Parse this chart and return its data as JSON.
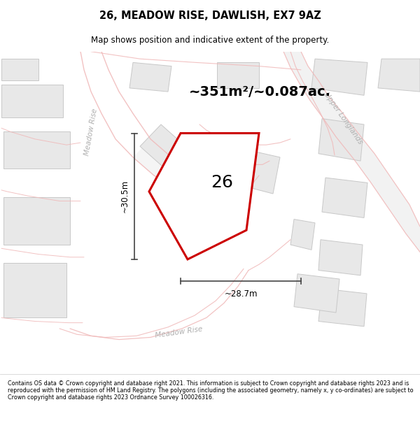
{
  "title_line1": "26, MEADOW RISE, DAWLISH, EX7 9AZ",
  "title_line2": "Map shows position and indicative extent of the property.",
  "area_text": "~351m²/~0.087ac.",
  "dim_width": "~28.7m",
  "dim_height": "~30.5m",
  "property_number": "26",
  "copyright_text": "Contains OS data © Crown copyright and database right 2021. This information is subject to Crown copyright and database rights 2023 and is reproduced with the permission of HM Land Registry. The polygons (including the associated geometry, namely x, y co-ordinates) are subject to Crown copyright and database rights 2023 Ordnance Survey 100026316.",
  "bg_color": "#f7f6f4",
  "highlight_color": "#cc0000",
  "building_fill": "#e8e8e8",
  "building_stroke": "#c8c8c8",
  "road_fill": "#ffffff",
  "pink_road": "#f0b8b8",
  "dim_color": "#444444",
  "label_color": "#b0b0b0"
}
